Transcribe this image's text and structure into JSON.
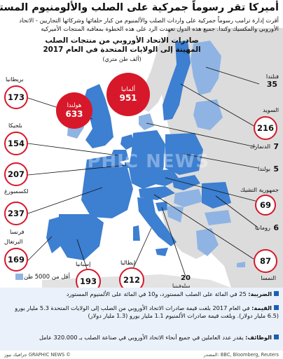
{
  "title": "أميركا تقر رسوماً جمركية على الصلب والألومنيوم المستورد من أوروبا",
  "intro": "أقرت إدارة ترامب رسوماً جمركية على واردات الصلب والألمنيوم من كبار حلفائها وشركائها التجاريين - الاتحاد الأوروبي والمكسيك وكندا. جميع هذه الدول تعهدت الرد على هذه الخطوة بمعاقبة المنتجات الأميركية",
  "subtitle": "صادرات الاتحاد الأوروبي من منتجات الصلب المهينة إلى الولايات المتحدة في العام 2017",
  "unit": "(ألف طن متري)",
  "colors": {
    "eu_major": "#3d7fd0",
    "eu_minor": "#8fb4e3",
    "non_eu": "#dcdcdc",
    "sea": "#ffffff",
    "bubble": "#d7182a"
  },
  "bubbles": [
    {
      "name": "ألمانيا",
      "value": "951"
    },
    {
      "name": "هولندا",
      "value": "633"
    }
  ],
  "rings": [
    {
      "value": "173"
    },
    {
      "value": "154"
    },
    {
      "value": "207"
    },
    {
      "value": "237"
    },
    {
      "value": "169"
    },
    {
      "value": "193"
    },
    {
      "value": "212"
    },
    {
      "value": "216"
    },
    {
      "value": "69"
    },
    {
      "value": "87"
    }
  ],
  "labels": {
    "britain": "بريطانيا",
    "belgium": "بلجيكا",
    "luxembourg": "لكسمبورغ",
    "france": "فرنسا",
    "portugal": "البرتغال",
    "spain": "إسبانيا",
    "italy": "إيطاليا",
    "slovenia": "سلوفينيا",
    "finland": "فنلندا",
    "sweden": "السويد",
    "denmark": "الدنمارك",
    "poland": "بولندا",
    "czech": "جمهورية التشيك",
    "romania": "رومانيا",
    "austria": "النمسا"
  },
  "plain_values": {
    "finland": "35",
    "denmark": "7",
    "poland": "5",
    "romania": "6",
    "slovenia": "20"
  },
  "legend": "أقل من 5000 طن",
  "watermark": "GRAPHIC NEWS",
  "facts": [
    {
      "label": "الضريبة:",
      "text": "25 في المائة على الصلب المستورد، و10 في المائة على الألمنيوم المستورد"
    },
    {
      "label": "القيمة:",
      "text": "في العام 2017 بلغت قيمة صادرات الاتحاد الأوروبي من الصلب إلى الولايات المتحدة 5.3 مليار يورو (6.5 مليار دولار). وبلغت قيمة صادرات الألمنيوم 1.1 مليار يورو (1.3 مليار دولار)"
    },
    {
      "label": "الوظائف:",
      "text": "يقدر عدد العاملين في جميع أنحاء الاتحاد الأوروبي في صناعة الصلب بـ 320.000 عامل"
    }
  ],
  "footer": {
    "source": "BBC, Bloomberg, Reuters :المصدر",
    "credit": "جرافيك نيوز GRAPHIC NEWS ©"
  }
}
